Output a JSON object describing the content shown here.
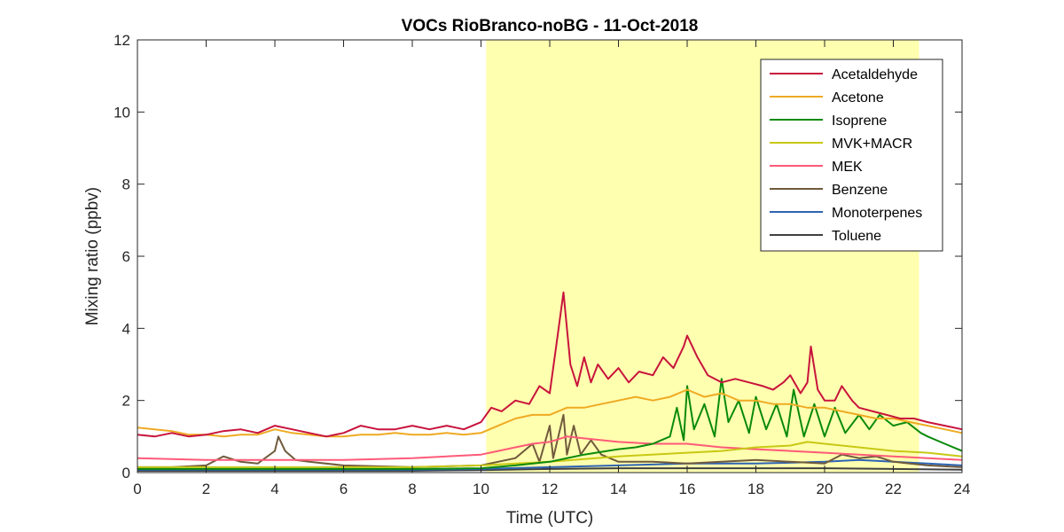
{
  "chart_data": {
    "type": "line",
    "title": "VOCs RioBranco-noBG - 11-Oct-2018",
    "xlabel": "Time (UTC)",
    "ylabel": "Mixing ratio (ppbv)",
    "xlim": [
      0,
      24
    ],
    "ylim": [
      0,
      12
    ],
    "xticks": [
      "0",
      "2",
      "4",
      "6",
      "8",
      "10",
      "12",
      "14",
      "16",
      "18",
      "20",
      "22",
      "24"
    ],
    "yticks": [
      "0",
      "2",
      "4",
      "6",
      "8",
      "10",
      "12"
    ],
    "grid": false,
    "legend_position": "top-right",
    "highlight_span": [
      10.15,
      22.75
    ],
    "highlight_color": "#ffffb0",
    "series": [
      {
        "name": "Acetaldehyde",
        "color": "#c8143c",
        "points": [
          [
            0,
            1.05
          ],
          [
            0.5,
            1.0
          ],
          [
            1,
            1.1
          ],
          [
            1.5,
            1.0
          ],
          [
            2,
            1.05
          ],
          [
            2.5,
            1.15
          ],
          [
            3,
            1.2
          ],
          [
            3.5,
            1.1
          ],
          [
            4,
            1.3
          ],
          [
            4.5,
            1.2
          ],
          [
            5,
            1.1
          ],
          [
            5.5,
            1.0
          ],
          [
            6,
            1.1
          ],
          [
            6.5,
            1.3
          ],
          [
            7,
            1.2
          ],
          [
            7.5,
            1.2
          ],
          [
            8,
            1.3
          ],
          [
            8.5,
            1.2
          ],
          [
            9,
            1.3
          ],
          [
            9.5,
            1.2
          ],
          [
            10,
            1.4
          ],
          [
            10.3,
            1.8
          ],
          [
            10.6,
            1.7
          ],
          [
            11,
            2.0
          ],
          [
            11.4,
            1.9
          ],
          [
            11.7,
            2.4
          ],
          [
            12,
            2.2
          ],
          [
            12.2,
            3.6
          ],
          [
            12.4,
            5.0
          ],
          [
            12.6,
            3.0
          ],
          [
            12.8,
            2.4
          ],
          [
            13,
            3.2
          ],
          [
            13.2,
            2.5
          ],
          [
            13.4,
            3.0
          ],
          [
            13.7,
            2.6
          ],
          [
            14,
            2.9
          ],
          [
            14.3,
            2.5
          ],
          [
            14.6,
            2.8
          ],
          [
            15,
            2.7
          ],
          [
            15.3,
            3.2
          ],
          [
            15.6,
            2.9
          ],
          [
            15.9,
            3.5
          ],
          [
            16,
            3.8
          ],
          [
            16.3,
            3.2
          ],
          [
            16.6,
            2.7
          ],
          [
            17,
            2.5
          ],
          [
            17.4,
            2.6
          ],
          [
            17.8,
            2.5
          ],
          [
            18.2,
            2.4
          ],
          [
            18.5,
            2.3
          ],
          [
            18.8,
            2.5
          ],
          [
            19,
            2.7
          ],
          [
            19.3,
            2.2
          ],
          [
            19.5,
            2.5
          ],
          [
            19.6,
            3.5
          ],
          [
            19.8,
            2.3
          ],
          [
            20,
            2.0
          ],
          [
            20.3,
            2.0
          ],
          [
            20.5,
            2.4
          ],
          [
            20.8,
            2.0
          ],
          [
            21,
            1.8
          ],
          [
            21.4,
            1.7
          ],
          [
            21.8,
            1.6
          ],
          [
            22.2,
            1.5
          ],
          [
            22.6,
            1.5
          ],
          [
            23,
            1.4
          ],
          [
            23.5,
            1.3
          ],
          [
            24,
            1.2
          ]
        ]
      },
      {
        "name": "Acetone",
        "color": "#eeaa22",
        "points": [
          [
            0,
            1.25
          ],
          [
            0.5,
            1.2
          ],
          [
            1,
            1.15
          ],
          [
            1.5,
            1.05
          ],
          [
            2,
            1.05
          ],
          [
            2.5,
            1.0
          ],
          [
            3,
            1.05
          ],
          [
            3.5,
            1.05
          ],
          [
            4,
            1.2
          ],
          [
            4.5,
            1.1
          ],
          [
            5,
            1.05
          ],
          [
            5.5,
            1.0
          ],
          [
            6,
            1.0
          ],
          [
            6.5,
            1.05
          ],
          [
            7,
            1.05
          ],
          [
            7.5,
            1.1
          ],
          [
            8,
            1.05
          ],
          [
            8.5,
            1.05
          ],
          [
            9,
            1.1
          ],
          [
            9.5,
            1.05
          ],
          [
            10,
            1.1
          ],
          [
            10.5,
            1.3
          ],
          [
            11,
            1.5
          ],
          [
            11.5,
            1.6
          ],
          [
            12,
            1.6
          ],
          [
            12.5,
            1.8
          ],
          [
            13,
            1.8
          ],
          [
            13.5,
            1.9
          ],
          [
            14,
            2.0
          ],
          [
            14.5,
            2.1
          ],
          [
            15,
            2.0
          ],
          [
            15.5,
            2.1
          ],
          [
            16,
            2.3
          ],
          [
            16.5,
            2.1
          ],
          [
            17,
            2.2
          ],
          [
            17.5,
            2.0
          ],
          [
            18,
            2.0
          ],
          [
            18.5,
            1.9
          ],
          [
            19,
            1.9
          ],
          [
            19.5,
            1.8
          ],
          [
            20,
            1.8
          ],
          [
            20.5,
            1.7
          ],
          [
            21,
            1.6
          ],
          [
            21.5,
            1.5
          ],
          [
            22,
            1.5
          ],
          [
            22.5,
            1.4
          ],
          [
            23,
            1.3
          ],
          [
            23.5,
            1.2
          ],
          [
            24,
            1.1
          ]
        ]
      },
      {
        "name": "Isoprene",
        "color": "#0a8a0a",
        "points": [
          [
            0,
            0.1
          ],
          [
            2,
            0.1
          ],
          [
            4,
            0.1
          ],
          [
            6,
            0.1
          ],
          [
            8,
            0.1
          ],
          [
            10,
            0.12
          ],
          [
            11,
            0.2
          ],
          [
            12,
            0.3
          ],
          [
            13,
            0.5
          ],
          [
            14,
            0.65
          ],
          [
            14.5,
            0.7
          ],
          [
            15,
            0.8
          ],
          [
            15.5,
            1.0
          ],
          [
            15.7,
            1.8
          ],
          [
            15.9,
            0.9
          ],
          [
            16,
            2.4
          ],
          [
            16.2,
            1.2
          ],
          [
            16.5,
            1.9
          ],
          [
            16.8,
            1.0
          ],
          [
            17,
            2.6
          ],
          [
            17.2,
            1.4
          ],
          [
            17.5,
            2.0
          ],
          [
            17.8,
            1.1
          ],
          [
            18,
            2.1
          ],
          [
            18.3,
            1.2
          ],
          [
            18.6,
            1.9
          ],
          [
            18.9,
            1.0
          ],
          [
            19.1,
            2.3
          ],
          [
            19.4,
            1.0
          ],
          [
            19.7,
            1.9
          ],
          [
            20,
            1.0
          ],
          [
            20.3,
            1.8
          ],
          [
            20.6,
            1.1
          ],
          [
            21,
            1.6
          ],
          [
            21.3,
            1.2
          ],
          [
            21.6,
            1.6
          ],
          [
            22,
            1.3
          ],
          [
            22.4,
            1.4
          ],
          [
            22.8,
            1.1
          ],
          [
            23,
            1.0
          ],
          [
            23.5,
            0.8
          ],
          [
            24,
            0.6
          ]
        ]
      },
      {
        "name": "MVK+MACR",
        "color": "#c8c814",
        "points": [
          [
            0,
            0.15
          ],
          [
            4,
            0.15
          ],
          [
            8,
            0.15
          ],
          [
            10,
            0.2
          ],
          [
            12,
            0.3
          ],
          [
            14,
            0.45
          ],
          [
            16,
            0.55
          ],
          [
            17,
            0.6
          ],
          [
            18,
            0.7
          ],
          [
            19,
            0.75
          ],
          [
            19.5,
            0.85
          ],
          [
            20,
            0.8
          ],
          [
            21,
            0.7
          ],
          [
            22,
            0.6
          ],
          [
            23,
            0.55
          ],
          [
            24,
            0.45
          ]
        ]
      },
      {
        "name": "MEK",
        "color": "#ff5a78",
        "points": [
          [
            0,
            0.4
          ],
          [
            2,
            0.35
          ],
          [
            4,
            0.35
          ],
          [
            6,
            0.35
          ],
          [
            8,
            0.4
          ],
          [
            9,
            0.45
          ],
          [
            10,
            0.5
          ],
          [
            10.5,
            0.6
          ],
          [
            11,
            0.7
          ],
          [
            11.5,
            0.8
          ],
          [
            12,
            0.85
          ],
          [
            12.5,
            1.0
          ],
          [
            13,
            0.95
          ],
          [
            13.5,
            0.9
          ],
          [
            14,
            0.85
          ],
          [
            15,
            0.8
          ],
          [
            16,
            0.8
          ],
          [
            17,
            0.7
          ],
          [
            18,
            0.65
          ],
          [
            19,
            0.6
          ],
          [
            20,
            0.55
          ],
          [
            21,
            0.5
          ],
          [
            22,
            0.45
          ],
          [
            23,
            0.4
          ],
          [
            24,
            0.35
          ]
        ]
      },
      {
        "name": "Benzene",
        "color": "#705a3c",
        "points": [
          [
            0,
            0.15
          ],
          [
            1,
            0.15
          ],
          [
            2,
            0.2
          ],
          [
            2.5,
            0.45
          ],
          [
            3,
            0.3
          ],
          [
            3.5,
            0.25
          ],
          [
            4,
            0.6
          ],
          [
            4.1,
            1.0
          ],
          [
            4.3,
            0.6
          ],
          [
            4.6,
            0.35
          ],
          [
            5,
            0.3
          ],
          [
            6,
            0.2
          ],
          [
            8,
            0.15
          ],
          [
            10,
            0.2
          ],
          [
            11,
            0.4
          ],
          [
            11.5,
            0.8
          ],
          [
            11.7,
            0.3
          ],
          [
            12,
            1.3
          ],
          [
            12.1,
            0.4
          ],
          [
            12.4,
            1.6
          ],
          [
            12.5,
            0.5
          ],
          [
            12.7,
            1.3
          ],
          [
            12.9,
            0.5
          ],
          [
            13.2,
            0.9
          ],
          [
            13.5,
            0.5
          ],
          [
            14,
            0.3
          ],
          [
            15,
            0.3
          ],
          [
            16,
            0.25
          ],
          [
            17,
            0.3
          ],
          [
            18,
            0.35
          ],
          [
            19,
            0.3
          ],
          [
            20,
            0.25
          ],
          [
            20.5,
            0.5
          ],
          [
            21,
            0.4
          ],
          [
            21.5,
            0.45
          ],
          [
            22,
            0.3
          ],
          [
            23,
            0.2
          ],
          [
            24,
            0.15
          ]
        ]
      },
      {
        "name": "Monoterpenes",
        "color": "#2e64b4",
        "points": [
          [
            0,
            0.08
          ],
          [
            4,
            0.08
          ],
          [
            8,
            0.08
          ],
          [
            10,
            0.1
          ],
          [
            12,
            0.15
          ],
          [
            14,
            0.2
          ],
          [
            16,
            0.25
          ],
          [
            18,
            0.25
          ],
          [
            20,
            0.3
          ],
          [
            21,
            0.35
          ],
          [
            22,
            0.3
          ],
          [
            23,
            0.25
          ],
          [
            24,
            0.2
          ]
        ]
      },
      {
        "name": "Toluene",
        "color": "#404040",
        "points": [
          [
            0,
            0.05
          ],
          [
            4,
            0.05
          ],
          [
            8,
            0.05
          ],
          [
            10,
            0.07
          ],
          [
            12,
            0.1
          ],
          [
            14,
            0.12
          ],
          [
            16,
            0.12
          ],
          [
            18,
            0.12
          ],
          [
            20,
            0.12
          ],
          [
            22,
            0.1
          ],
          [
            24,
            0.08
          ]
        ]
      }
    ]
  }
}
